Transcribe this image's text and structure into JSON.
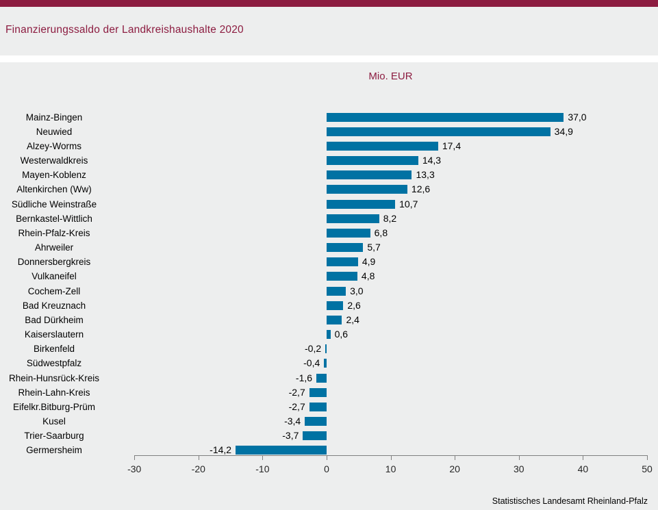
{
  "header": {
    "title": "Finanzierungssaldo der Landkreishaushalte 2020"
  },
  "footer": {
    "source": "Statistisches Landesamt Rheinland-Pfalz"
  },
  "colors": {
    "accent_maroon": "#8C1C40",
    "bar_blue": "#0072A3",
    "panel_gray": "#EDEEEE"
  },
  "chart_data": {
    "type": "bar",
    "orientation": "horizontal",
    "title": "Finanzierungssaldo der Landkreishaushalte 2020",
    "unit_label": "Mio. EUR",
    "categories": [
      "Mainz-Bingen",
      "Neuwied",
      "Alzey-Worms",
      "Westerwaldkreis",
      "Mayen-Koblenz",
      "Altenkirchen (Ww)",
      "Südliche Weinstraße",
      "Bernkastel-Wittlich",
      "Rhein-Pfalz-Kreis",
      "Ahrweiler",
      "Donnersbergkreis",
      "Vulkaneifel",
      "Cochem-Zell",
      "Bad Kreuznach",
      "Bad Dürkheim",
      "Kaiserslautern",
      "Birkenfeld",
      "Südwestpfalz",
      "Rhein-Hunsrück-Kreis",
      "Rhein-Lahn-Kreis",
      "Eifelkr.Bitburg-Prüm",
      "Kusel",
      "Trier-Saarburg",
      "Germersheim"
    ],
    "values": [
      37.0,
      34.9,
      17.4,
      14.3,
      13.3,
      12.6,
      10.7,
      8.2,
      6.8,
      5.7,
      4.9,
      4.8,
      3.0,
      2.6,
      2.4,
      0.6,
      -0.2,
      -0.4,
      -1.6,
      -2.7,
      -2.7,
      -3.4,
      -3.7,
      -14.2
    ],
    "value_labels": [
      "37,0",
      "34,9",
      "17,4",
      "14,3",
      "13,3",
      "12,6",
      "10,7",
      "8,2",
      "6,8",
      "5,7",
      "4,9",
      "4,8",
      "3,0",
      "2,6",
      "2,4",
      "0,6",
      "-0,2",
      "-0,4",
      "-1,6",
      "-2,7",
      "-2,7",
      "-3,4",
      "-3,7",
      "-14,2"
    ],
    "xlabel": "",
    "ylabel": "",
    "xlim": [
      -30,
      50
    ],
    "x_ticks": [
      -30,
      -20,
      -10,
      0,
      10,
      20,
      30,
      40,
      50
    ],
    "x_tick_labels": [
      "-30",
      "-20",
      "-10",
      "0",
      "10",
      "20",
      "30",
      "40",
      "50"
    ],
    "grid": false,
    "legend": "none",
    "source": "Statistisches Landesamt Rheinland-Pfalz"
  }
}
